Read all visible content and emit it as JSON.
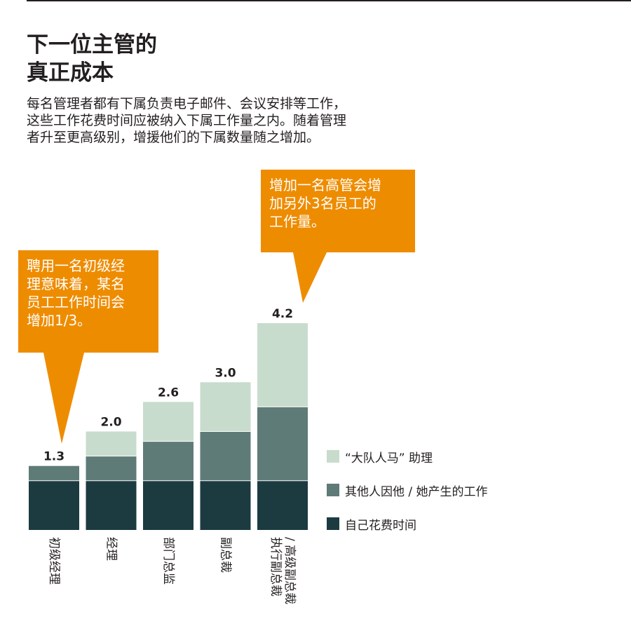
{
  "title": [
    "下一位主管的",
    "真正成本"
  ],
  "subtitle": [
    "每名管理者都有下属负责电子邮件、会议安排等工作，",
    "这些工作花费时间应被纳入下属工作量之内。随着管理",
    "者升至更高级别，增援他们的下属数量随之增加。"
  ],
  "callouts": [
    {
      "lines": [
        "聘用一名初级经",
        "理意味着，某名",
        "员工工作时间会",
        "增加1/3。"
      ]
    },
    {
      "lines": [
        "增加一名高管会增",
        "加另外3名员工的",
        "工作量。"
      ]
    }
  ],
  "colors": {
    "own": "#1c3b41",
    "others": "#5f7b78",
    "support": "#c8dccd",
    "callout": "#ee8c00"
  },
  "chart_data": {
    "type": "bar",
    "stacked": true,
    "categories": [
      [
        "初级经理"
      ],
      [
        "经理"
      ],
      [
        "部门总监"
      ],
      [
        "副总裁"
      ],
      [
        "执行副总裁",
        "/ 高级副总裁"
      ]
    ],
    "totals": [
      "1.3",
      "2.0",
      "2.6",
      "3.0",
      "4.2"
    ],
    "series": [
      {
        "name": "自己花费时间",
        "color": "#1c3b41",
        "values": [
          1.0,
          1.0,
          1.0,
          1.0,
          1.0
        ]
      },
      {
        "name": "其他人因他 / 她产生的工作",
        "color": "#5f7b78",
        "values": [
          0.3,
          0.5,
          0.8,
          1.0,
          1.5
        ]
      },
      {
        "name": "“大队人马” 助理",
        "color": "#c8dccd",
        "values": [
          0.0,
          0.5,
          0.8,
          1.0,
          1.7
        ]
      }
    ],
    "ylim": [
      0,
      4.2
    ],
    "legend_position": "right",
    "grid": false
  }
}
